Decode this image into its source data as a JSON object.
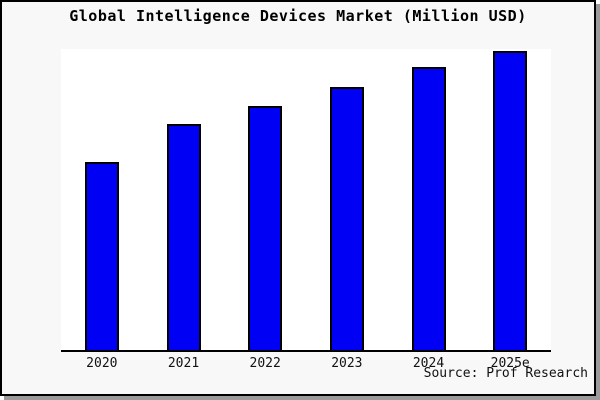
{
  "chart_data": {
    "type": "bar",
    "title": "Global Intelligence Devices Market (Million USD)",
    "categories": [
      "2020",
      "2021",
      "2022",
      "2023",
      "2024",
      "2025e"
    ],
    "values": [
      62.5,
      75.0,
      81.2,
      87.5,
      94.0,
      99.3
    ],
    "value_note": "No y-axis or data labels shown; values are relative bar heights as % of plot height",
    "xlabel": "",
    "ylabel": "",
    "ylim": [
      0,
      100
    ],
    "y_axis_visible": false,
    "grid": false,
    "legend": false,
    "bar_color": "#0000f5",
    "bar_edge_color": "#000000"
  },
  "source_note": "Source: Prof Research",
  "colors": {
    "figure_background": "#f8f8f8",
    "plot_background": "#ffffff",
    "frame_border": "#000000",
    "frame_shadow": "#9b9b9b",
    "axis_line": "#000000",
    "text": "#111111"
  }
}
